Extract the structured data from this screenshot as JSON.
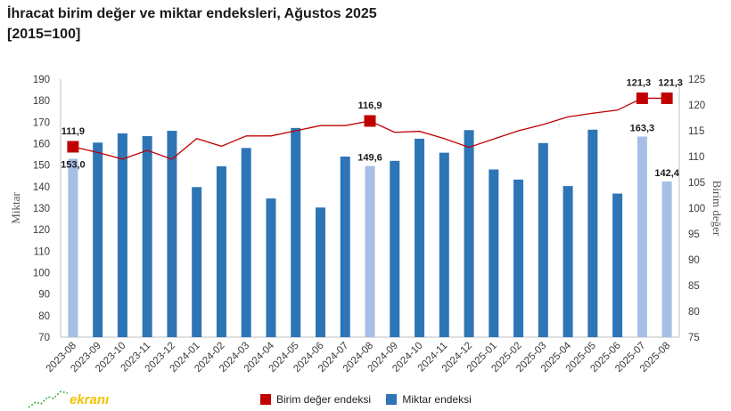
{
  "title": "İhracat birim değer ve miktar endeksleri, Ağustos 2025",
  "subtitle": "[2015=100]",
  "watermark": "ekranı",
  "chart_data": {
    "type": "bar+line",
    "categories": [
      "2023-08",
      "2023-09",
      "2023-10",
      "2023-11",
      "2023-12",
      "2024-01",
      "2024-02",
      "2024-03",
      "2024-04",
      "2024-05",
      "2024-06",
      "2024-07",
      "2024-08",
      "2024-09",
      "2024-10",
      "2024-11",
      "2024-12",
      "2025-01",
      "2025-02",
      "2025-03",
      "2025-04",
      "2025-05",
      "2025-06",
      "2025-07",
      "2025-08"
    ],
    "bar_series": {
      "name": "Miktar endeksi",
      "axis": "left",
      "values": [
        153.0,
        160.5,
        164.8,
        163.5,
        166.0,
        139.8,
        149.5,
        158.0,
        134.5,
        167.3,
        130.3,
        154.0,
        149.6,
        152.0,
        162.3,
        155.8,
        166.3,
        148.0,
        143.3,
        160.3,
        140.3,
        166.5,
        136.8,
        163.3,
        142.4
      ],
      "highlighted": [
        "2023-08",
        "2024-08",
        "2025-07",
        "2025-08"
      ],
      "color": "#2e75b6",
      "highlight_color": "#a6bfe6"
    },
    "line_series": {
      "name": "Birim değer endeksi",
      "axis": "right",
      "values": [
        111.9,
        110.8,
        109.5,
        111.2,
        109.5,
        113.5,
        112.0,
        114.0,
        114.0,
        115.0,
        116.0,
        116.0,
        116.9,
        114.7,
        114.9,
        113.5,
        111.8,
        113.4,
        115.0,
        116.2,
        117.7,
        118.4,
        119.0,
        121.3,
        121.3
      ],
      "color": "#c00000",
      "markers_at": [
        "2023-08",
        "2024-08",
        "2025-07",
        "2025-08"
      ]
    },
    "data_labels": {
      "bars": [
        {
          "category": "2023-08",
          "text": "153,0"
        },
        {
          "category": "2024-08",
          "text": "149,6"
        },
        {
          "category": "2025-07",
          "text": "163,3"
        },
        {
          "category": "2025-08",
          "text": "142,4"
        }
      ],
      "line": [
        {
          "category": "2023-08",
          "text": "111,9"
        },
        {
          "category": "2024-08",
          "text": "116,9"
        },
        {
          "category": "2025-07",
          "text": "121,3"
        },
        {
          "category": "2025-08",
          "text": "121,3"
        }
      ]
    },
    "y_left": {
      "label": "Miktar",
      "min": 70,
      "max": 190,
      "ticks": [
        "70",
        "80",
        "90",
        "100",
        "110",
        "120",
        "130",
        "140",
        "150",
        "160",
        "170",
        "180",
        "190"
      ]
    },
    "y_right": {
      "label": "Birim değer",
      "min": 75,
      "max": 125,
      "ticks": [
        "75",
        "80",
        "85",
        "90",
        "95",
        "100",
        "105",
        "110",
        "115",
        "120",
        "125"
      ]
    },
    "legend": [
      {
        "label": "Birim değer endeksi",
        "color": "#c00000"
      },
      {
        "label": "Miktar endeksi",
        "color": "#2e75b6"
      }
    ],
    "legend_position": "bottom",
    "grid": false
  }
}
